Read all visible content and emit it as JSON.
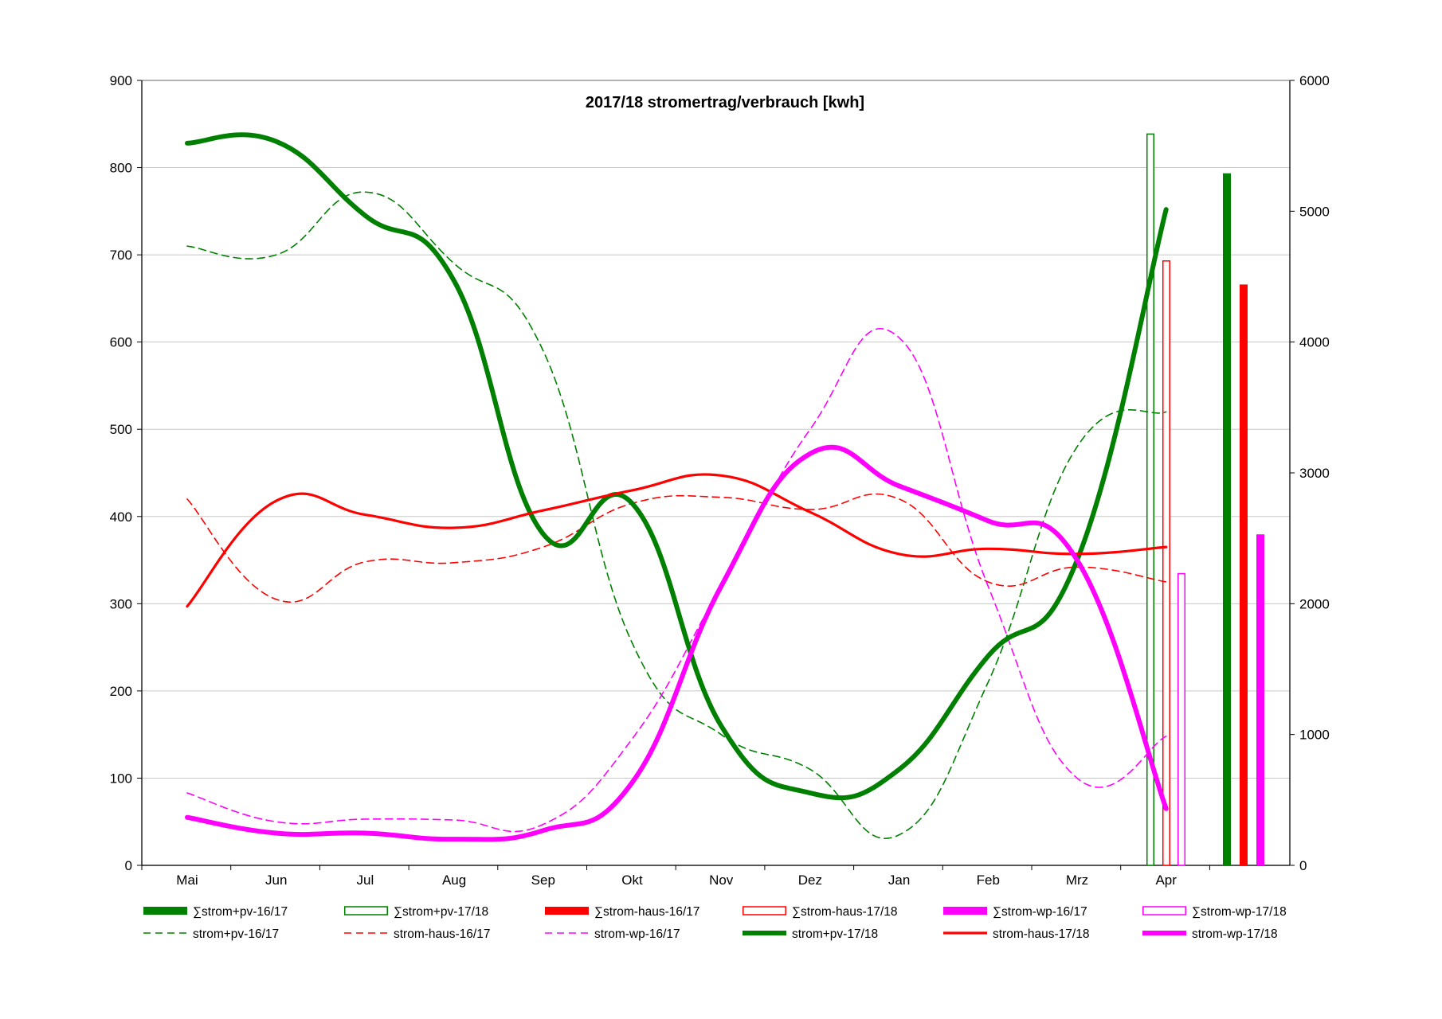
{
  "chart_data": {
    "type": "line",
    "title": "2017/18 stromertrag/verbrauch [kwh]",
    "categories": [
      "Mai",
      "Jun",
      "Jul",
      "Aug",
      "Sep",
      "Okt",
      "Nov",
      "Dez",
      "Jan",
      "Feb",
      "Mrz",
      "Apr"
    ],
    "y_left": {
      "ylim": [
        0,
        900
      ],
      "ticks": [
        0,
        100,
        200,
        300,
        400,
        500,
        600,
        700,
        800,
        900
      ]
    },
    "y_right": {
      "ylim": [
        0,
        6000
      ],
      "ticks": [
        0,
        1000,
        2000,
        3000,
        4000,
        5000,
        6000
      ]
    },
    "grid": "horizontal",
    "legend_position": "bottom",
    "line_series": [
      {
        "name": "strom+pv-16/17",
        "color": "#008000",
        "style": "dashed",
        "weight": "thin",
        "values": [
          710,
          700,
          772,
          690,
          590,
          255,
          150,
          110,
          35,
          210,
          480,
          520
        ]
      },
      {
        "name": "strom-haus-16/17",
        "color": "#ff0000",
        "style": "dashed",
        "weight": "thin",
        "values": [
          420,
          305,
          348,
          347,
          365,
          415,
          422,
          408,
          420,
          325,
          342,
          325
        ]
      },
      {
        "name": "strom-wp-16/17",
        "color": "#ff00ff",
        "style": "dashed",
        "weight": "thin",
        "values": [
          83,
          50,
          53,
          52,
          47,
          145,
          320,
          500,
          605,
          320,
          100,
          148
        ]
      },
      {
        "name": "strom+pv-17/18",
        "color": "#008000",
        "style": "solid",
        "weight": "thick",
        "values": [
          828,
          830,
          745,
          670,
          380,
          415,
          160,
          83,
          110,
          240,
          350,
          752
        ]
      },
      {
        "name": "strom-haus-17/18",
        "color": "#ff0000",
        "style": "solid",
        "weight": "medium",
        "values": [
          297,
          418,
          402,
          387,
          407,
          430,
          447,
          405,
          357,
          363,
          357,
          365
        ]
      },
      {
        "name": "strom-wp-17/18",
        "color": "#ff00ff",
        "style": "solid",
        "weight": "thick",
        "values": [
          55,
          37,
          37,
          30,
          40,
          95,
          320,
          472,
          435,
          395,
          350,
          65
        ]
      }
    ],
    "sum_series": [
      {
        "name": "∑strom+pv-16/17",
        "color": "#008000",
        "style": "filled",
        "value": 5290
      },
      {
        "name": "∑strom+pv-17/18",
        "color": "#008000",
        "style": "outline",
        "value": 5590
      },
      {
        "name": "∑strom-haus-16/17",
        "color": "#ff0000",
        "style": "filled",
        "value": 4440
      },
      {
        "name": "∑strom-haus-17/18",
        "color": "#ff0000",
        "style": "outline",
        "value": 4620
      },
      {
        "name": "∑strom-wp-16/17",
        "color": "#ff00ff",
        "style": "filled",
        "value": 2530
      },
      {
        "name": "∑strom-wp-17/18",
        "color": "#ff00ff",
        "style": "outline",
        "value": 2230
      }
    ],
    "legend": [
      [
        "∑strom+pv-16/17",
        "∑strom+pv-17/18",
        "∑strom-haus-16/17",
        "∑strom-haus-17/18",
        "∑strom-wp-16/17",
        "∑strom-wp-17/18"
      ],
      [
        "strom+pv-16/17",
        "strom-haus-16/17",
        "strom-wp-16/17",
        "strom+pv-17/18",
        "strom-haus-17/18",
        "strom-wp-17/18"
      ]
    ]
  }
}
